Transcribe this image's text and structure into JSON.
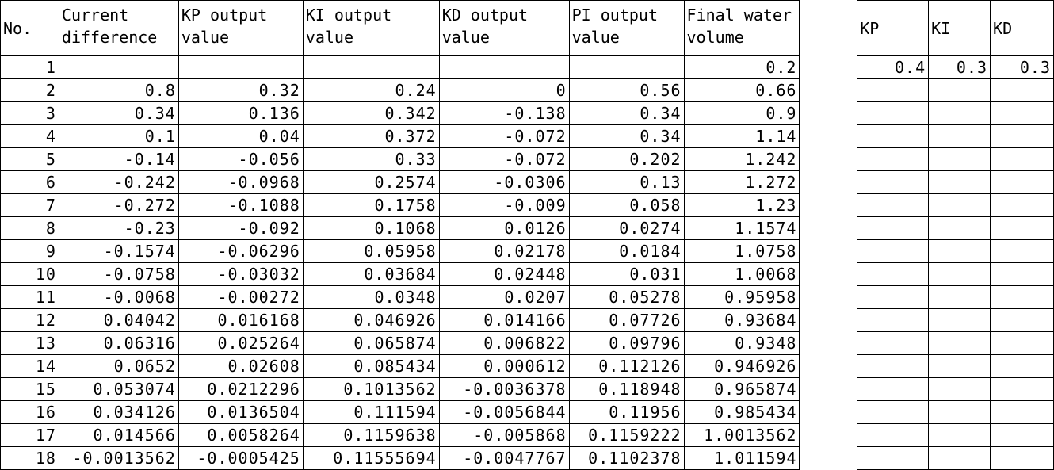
{
  "headers": {
    "no": "No.",
    "current_difference": "Current difference",
    "kp_output": "KP output value",
    "ki_output": "KI output value",
    "kd_output": "KD output value",
    "pi_output": "PI output value",
    "final_water": "Final water volume",
    "kp": "KP",
    "ki": "KI",
    "kd": "KD"
  },
  "params": {
    "kp": "0.4",
    "ki": "0.3",
    "kd": "0.3"
  },
  "rows": [
    [
      "1",
      "",
      "",
      "",
      "",
      "",
      "0.2"
    ],
    [
      "2",
      "0.8",
      "0.32",
      "0.24",
      "0",
      "0.56",
      "0.66"
    ],
    [
      "3",
      "0.34",
      "0.136",
      "0.342",
      "-0.138",
      "0.34",
      "0.9"
    ],
    [
      "4",
      "0.1",
      "0.04",
      "0.372",
      "-0.072",
      "0.34",
      "1.14"
    ],
    [
      "5",
      "-0.14",
      "-0.056",
      "0.33",
      "-0.072",
      "0.202",
      "1.242"
    ],
    [
      "6",
      "-0.242",
      "-0.0968",
      "0.2574",
      "-0.0306",
      "0.13",
      "1.272"
    ],
    [
      "7",
      "-0.272",
      "-0.1088",
      "0.1758",
      "-0.009",
      "0.058",
      "1.23"
    ],
    [
      "8",
      "-0.23",
      "-0.092",
      "0.1068",
      "0.0126",
      "0.0274",
      "1.1574"
    ],
    [
      "9",
      "-0.1574",
      "-0.06296",
      "0.05958",
      "0.02178",
      "0.0184",
      "1.0758"
    ],
    [
      "10",
      "-0.0758",
      "-0.03032",
      "0.03684",
      "0.02448",
      "0.031",
      "1.0068"
    ],
    [
      "11",
      "-0.0068",
      "-0.00272",
      "0.0348",
      "0.0207",
      "0.05278",
      "0.95958"
    ],
    [
      "12",
      "0.04042",
      "0.016168",
      "0.046926",
      "0.014166",
      "0.07726",
      "0.93684"
    ],
    [
      "13",
      "0.06316",
      "0.025264",
      "0.065874",
      "0.006822",
      "0.09796",
      "0.9348"
    ],
    [
      "14",
      "0.0652",
      "0.02608",
      "0.085434",
      "0.000612",
      "0.112126",
      "0.946926"
    ],
    [
      "15",
      "0.053074",
      "0.0212296",
      "0.1013562",
      "-0.0036378",
      "0.118948",
      "0.965874"
    ],
    [
      "16",
      "0.034126",
      "0.0136504",
      "0.111594",
      "-0.0056844",
      "0.11956",
      "0.985434"
    ],
    [
      "17",
      "0.014566",
      "0.0058264",
      "0.1159638",
      "-0.005868",
      "0.1159222",
      "1.0013562"
    ],
    [
      "18",
      "-0.0013562",
      "-0.0005425",
      "0.11555694",
      "-0.0047767",
      "0.1102378",
      "1.011594"
    ]
  ]
}
